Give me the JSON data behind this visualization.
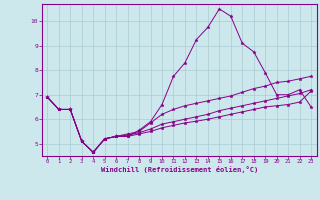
{
  "background_color": "#cce8ed",
  "grid_color": "#aaccd4",
  "line_color": "#880088",
  "marker": "*",
  "xlabel": "Windchill (Refroidissement éolien,°C)",
  "xlim": [
    -0.5,
    23.5
  ],
  "ylim": [
    4.5,
    10.7
  ],
  "yticks": [
    5,
    6,
    7,
    8,
    9,
    10
  ],
  "xticks": [
    0,
    1,
    2,
    3,
    4,
    5,
    6,
    7,
    8,
    9,
    10,
    11,
    12,
    13,
    14,
    15,
    16,
    17,
    18,
    19,
    20,
    21,
    22,
    23
  ],
  "x": [
    0,
    1,
    2,
    3,
    4,
    5,
    6,
    7,
    8,
    9,
    10,
    11,
    12,
    13,
    14,
    15,
    16,
    17,
    18,
    19,
    20,
    21,
    22,
    23
  ],
  "series": [
    [
      6.9,
      6.4,
      6.4,
      5.1,
      4.65,
      5.2,
      5.3,
      5.3,
      5.55,
      5.9,
      6.6,
      7.75,
      8.3,
      9.25,
      9.75,
      10.5,
      10.2,
      9.1,
      8.75,
      7.9,
      7.0,
      7.0,
      7.2,
      6.5
    ],
    [
      6.9,
      6.4,
      6.4,
      5.1,
      4.65,
      5.2,
      5.3,
      5.4,
      5.5,
      5.85,
      6.2,
      6.4,
      6.55,
      6.65,
      6.75,
      6.85,
      6.95,
      7.1,
      7.25,
      7.35,
      7.5,
      7.55,
      7.65,
      7.75
    ],
    [
      6.9,
      6.4,
      6.4,
      5.1,
      4.65,
      5.2,
      5.3,
      5.35,
      5.45,
      5.6,
      5.8,
      5.9,
      6.0,
      6.1,
      6.2,
      6.35,
      6.45,
      6.55,
      6.65,
      6.75,
      6.85,
      6.95,
      7.05,
      7.2
    ],
    [
      6.9,
      6.4,
      6.4,
      5.1,
      4.65,
      5.2,
      5.3,
      5.3,
      5.4,
      5.5,
      5.65,
      5.75,
      5.85,
      5.92,
      6.0,
      6.1,
      6.2,
      6.3,
      6.4,
      6.5,
      6.55,
      6.6,
      6.7,
      7.15
    ]
  ]
}
